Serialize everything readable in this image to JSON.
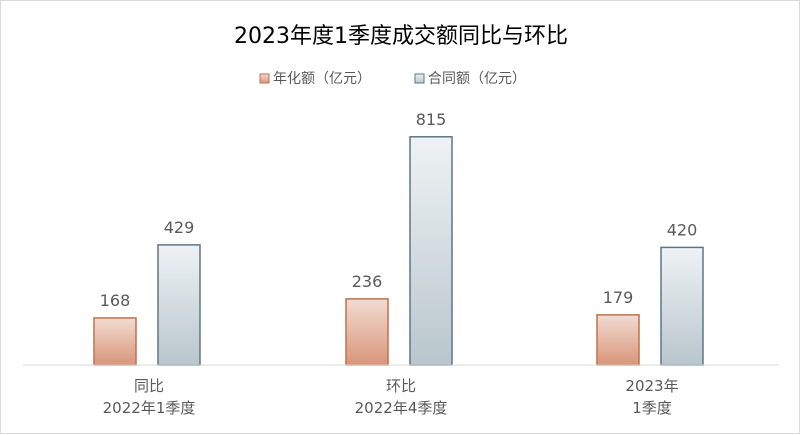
{
  "chart_data": {
    "type": "bar",
    "title": "2023年度1季度成交额同比与环比",
    "categories": [
      [
        "同比",
        "2022年1季度"
      ],
      [
        "环比",
        "2022年4季度"
      ],
      [
        "2023年",
        "1季度"
      ]
    ],
    "series": [
      {
        "name": "年化额（亿元）",
        "values": [
          168,
          236,
          179
        ],
        "fill_top": "#f2dcd1",
        "fill_bottom": "#d9957a",
        "stroke": "#c0704d"
      },
      {
        "name": "合同额（亿元）",
        "values": [
          429,
          815,
          420
        ],
        "fill_top": "#eef2f4",
        "fill_bottom": "#b9c6cd",
        "stroke": "#5d7786"
      }
    ],
    "ylim": [
      0,
      1000
    ],
    "grid": false,
    "legend_position": "top",
    "xlabel": "",
    "ylabel": ""
  }
}
